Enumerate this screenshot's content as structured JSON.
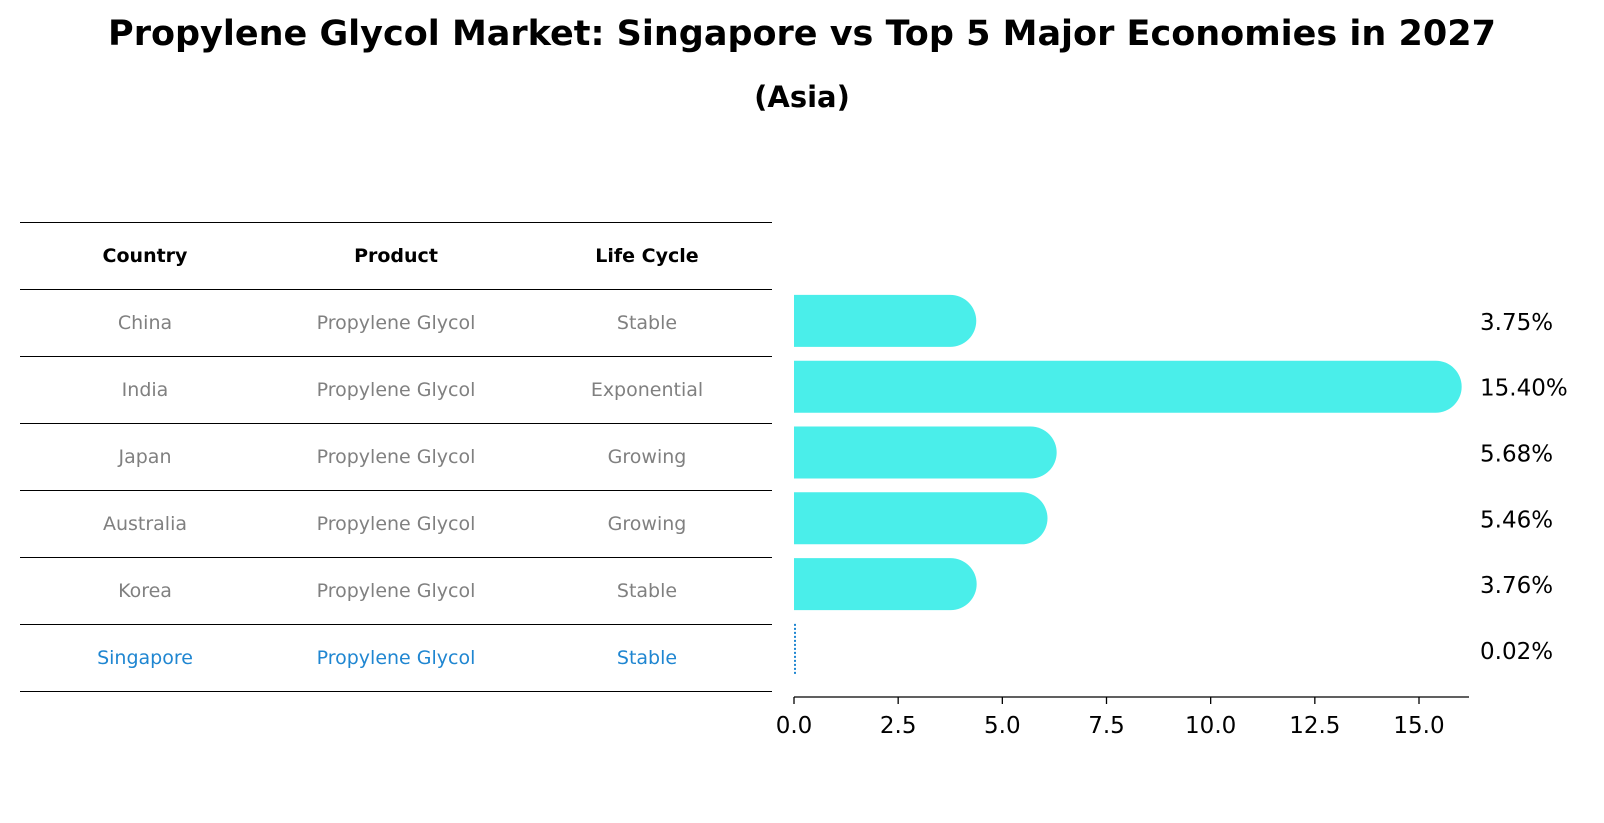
{
  "title": "Propylene Glycol Market: Singapore vs Top 5 Major Economies in 2027",
  "subtitle": "(Asia)",
  "table": {
    "headers": [
      "Country",
      "Product",
      "Life Cycle"
    ],
    "rows": [
      [
        "China",
        "Propylene Glycol",
        "Stable"
      ],
      [
        "India",
        "Propylene Glycol",
        "Exponential"
      ],
      [
        "Japan",
        "Propylene Glycol",
        "Growing"
      ],
      [
        "Australia",
        "Propylene Glycol",
        "Growing"
      ],
      [
        "Korea",
        "Propylene Glycol",
        "Stable"
      ],
      [
        "Singapore",
        "Propylene Glycol",
        "Stable"
      ]
    ]
  },
  "colors": {
    "bar": "#4aeeea",
    "highlight": "#1f86d1",
    "muted": "#808080",
    "text": "#000000"
  },
  "chart_data": {
    "type": "bar",
    "orientation": "horizontal",
    "categories": [
      "China",
      "India",
      "Japan",
      "Australia",
      "Korea",
      "Singapore"
    ],
    "values": [
      3.75,
      15.4,
      5.68,
      5.46,
      3.76,
      0.02
    ],
    "value_labels": [
      "3.75%",
      "15.40%",
      "5.68%",
      "5.46%",
      "3.76%",
      "0.02%"
    ],
    "xlim": [
      0,
      16.2
    ],
    "xticks": [
      0.0,
      2.5,
      5.0,
      7.5,
      10.0,
      12.5,
      15.0
    ],
    "xtick_labels": [
      "0.0",
      "2.5",
      "5.0",
      "7.5",
      "10.0",
      "12.5",
      "15.0"
    ],
    "highlight": "Singapore"
  }
}
